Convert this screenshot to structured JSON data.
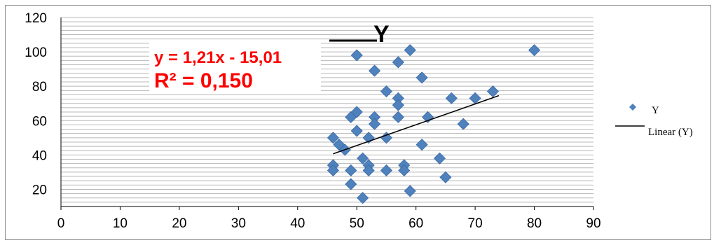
{
  "chart_data": {
    "type": "scatter",
    "title": "Y",
    "xlim": [
      0,
      90
    ],
    "ylim": [
      10,
      120
    ],
    "x_ticks": [
      0,
      10,
      20,
      30,
      40,
      50,
      60,
      70,
      80,
      90
    ],
    "y_ticks": [
      20,
      40,
      60,
      80,
      100,
      120
    ],
    "grid": true,
    "legend_position": "right",
    "series": [
      {
        "name": "Y",
        "marker": "diamond",
        "color": "#4f81bd",
        "points": [
          [
            46,
            50
          ],
          [
            46,
            34
          ],
          [
            46,
            31
          ],
          [
            47,
            46
          ],
          [
            48,
            43
          ],
          [
            49,
            62
          ],
          [
            49,
            31
          ],
          [
            49,
            23
          ],
          [
            50,
            65
          ],
          [
            50,
            54
          ],
          [
            50,
            98
          ],
          [
            51,
            38
          ],
          [
            51,
            15
          ],
          [
            52,
            50
          ],
          [
            52,
            34
          ],
          [
            52,
            31
          ],
          [
            53,
            89
          ],
          [
            53,
            62
          ],
          [
            53,
            58
          ],
          [
            55,
            77
          ],
          [
            55,
            50
          ],
          [
            55,
            31
          ],
          [
            57,
            94
          ],
          [
            57,
            73
          ],
          [
            57,
            69
          ],
          [
            57,
            62
          ],
          [
            58,
            34
          ],
          [
            58,
            31
          ],
          [
            59,
            101
          ],
          [
            59,
            19
          ],
          [
            61,
            85
          ],
          [
            61,
            46
          ],
          [
            62,
            62
          ],
          [
            64,
            38
          ],
          [
            65,
            27
          ],
          [
            66,
            73
          ],
          [
            68,
            58
          ],
          [
            70,
            73
          ],
          [
            73,
            77
          ],
          [
            80,
            101
          ]
        ]
      }
    ],
    "trendline": {
      "name": "Linear (Y)",
      "slope": 1.21,
      "intercept": -15.01,
      "x_range": [
        46,
        74
      ],
      "color": "#000000",
      "equation_label": "y = 1,21x - 15,01",
      "r2_label": "R² = 0,150",
      "label_color": "#ff0000"
    }
  }
}
